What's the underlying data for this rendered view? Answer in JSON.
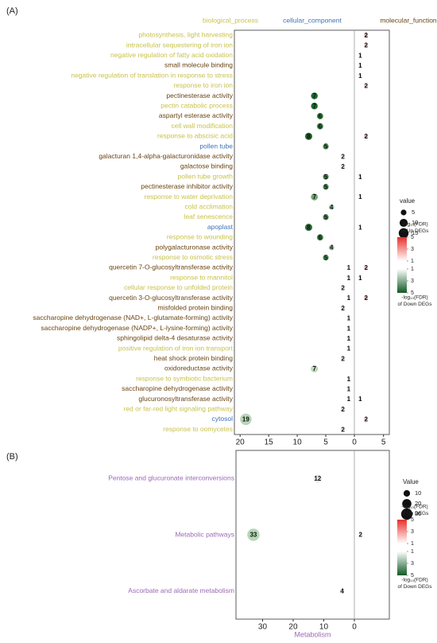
{
  "chart_data": [
    {
      "type": "dotplot",
      "panel_label": "(A)",
      "groups": [
        {
          "name": "biological_process",
          "color": "#c8c24b"
        },
        {
          "name": "cellular_component",
          "color": "#3d74b8"
        },
        {
          "name": "molecular_function",
          "color": "#6b4513"
        }
      ],
      "categories": [
        "photosynthesis, light harvesting",
        "intracellular sequestering of iron ion",
        "negative regulation of fatty acid oxidation",
        "small molecule binding",
        "negative regulation of translation in response to stress",
        "response to iron ion",
        "pectinesterase activity",
        "pectin catabolic process",
        "aspartyl esterase activity",
        "cell wall modification",
        "response to abscisic acid",
        "pollen tube",
        "galacturan 1,4-alpha-galacturonidase activity",
        "galactose binding",
        "pollen tube growth",
        "pectinesterase inhibitor activity",
        "response to water deprivation",
        "cold acclimation",
        "leaf senescence",
        "apoplast",
        "response to wounding",
        "polygalacturonase activity",
        "response to osmotic stress",
        "quercetin 7-O-glucosyltransferase activity",
        "response to mannitol",
        "cellular response to unfolded protein",
        "quercetin 3-O-glucosyltransferase activity",
        "misfolded protein binding",
        "saccharopine dehydrogenase (NAD+, L-glutamate-forming) activity",
        "saccharopine dehydrogenase (NADP+, L-lysine-forming) activity",
        "sphingolipid delta-4 desaturase activity",
        "positive regulation of iron ion transport",
        "heat shock protein binding",
        "oxidoreductase activity",
        "response to symbiotic bacterium",
        "saccharopine dehydrogenase activity",
        "glucuronosyltransferase activity",
        "red or far-red light signaling pathway",
        "cytosol",
        "response to oomycetes"
      ],
      "category_groups": [
        "biological_process",
        "biological_process",
        "biological_process",
        "molecular_function",
        "biological_process",
        "biological_process",
        "molecular_function",
        "biological_process",
        "molecular_function",
        "biological_process",
        "biological_process",
        "cellular_component",
        "molecular_function",
        "molecular_function",
        "biological_process",
        "molecular_function",
        "biological_process",
        "biological_process",
        "biological_process",
        "cellular_component",
        "biological_process",
        "molecular_function",
        "biological_process",
        "molecular_function",
        "biological_process",
        "biological_process",
        "molecular_function",
        "molecular_function",
        "molecular_function",
        "molecular_function",
        "molecular_function",
        "biological_process",
        "molecular_function",
        "molecular_function",
        "biological_process",
        "molecular_function",
        "molecular_function",
        "biological_process",
        "cellular_component",
        "biological_process"
      ],
      "down": {
        "values": [
          null,
          null,
          null,
          null,
          null,
          null,
          7,
          7,
          6,
          6,
          8,
          5,
          2,
          2,
          5,
          5,
          7,
          4,
          5,
          8,
          6,
          4,
          5,
          1,
          1,
          2,
          1,
          2,
          1,
          1,
          1,
          1,
          2,
          7,
          1,
          1,
          1,
          2,
          19,
          2
        ],
        "colors": [
          null,
          null,
          null,
          null,
          null,
          null,
          "#1b6b2e",
          "#1b6b2e",
          "#2f7d3c",
          "#2f7d3c",
          "#1e5e2a",
          "#3f8b4b",
          "#e8f3e8",
          "#e8f3e8",
          "#3f8b4b",
          "#3f8b4b",
          "#6aa96f",
          "#9fcfa0",
          "#3f8b4b",
          "#2a6a35",
          "#2f7d3c",
          "#9fcfa0",
          "#3f8b4b",
          "#f5faf5",
          "#f5faf5",
          "#e8f3e8",
          "#f5faf5",
          "#e8f3e8",
          "#f5faf5",
          "#f5faf5",
          "#f5faf5",
          "#f5faf5",
          "#e8f3e8",
          "#b9ddb9",
          "#f5faf5",
          "#f5faf5",
          "#f5faf5",
          "#e8f3e8",
          "#b5d9b5",
          "#e8f3e8"
        ]
      },
      "up": {
        "values": [
          2,
          2,
          1,
          1,
          1,
          2,
          null,
          null,
          null,
          null,
          2,
          null,
          null,
          null,
          1,
          null,
          1,
          null,
          null,
          1,
          null,
          null,
          null,
          2,
          1,
          null,
          2,
          null,
          null,
          null,
          null,
          null,
          null,
          null,
          null,
          null,
          1,
          null,
          2,
          null
        ],
        "colors": [
          "#f2b8b2",
          "#f6cfcb",
          "#fbe9e7",
          "#fbe9e7",
          "#fbe9e7",
          "#f6cfcb",
          null,
          null,
          null,
          null,
          "#f2b8b2",
          null,
          null,
          null,
          "#fbe9e7",
          null,
          "#fbe9e7",
          null,
          null,
          "#fbe9e7",
          null,
          null,
          null,
          "#f6cfcb",
          "#fbe9e7",
          null,
          "#f2b8b2",
          null,
          null,
          null,
          null,
          null,
          null,
          null,
          null,
          null,
          "#fbe9e7",
          null,
          "#f6cfcb",
          null
        ]
      },
      "xlim_down": [
        21,
        0
      ],
      "xticks_down": [
        20,
        15,
        10,
        5,
        0
      ],
      "xlim_up": [
        0,
        6
      ],
      "xticks_up": [
        5
      ],
      "size_legend": {
        "title": "value",
        "values": [
          5,
          10,
          15
        ]
      },
      "color_legend": {
        "up_title": [
          "-log₁₀(FDR)",
          "of Up DEGs"
        ],
        "up_ticks": [
          5,
          3,
          1
        ],
        "down_ticks": [
          1,
          3,
          5
        ],
        "down_title": [
          "-log₁₀(FDR)",
          "of Down DEGs"
        ],
        "up_color": "#e8302a",
        "down_color": "#0f5a24"
      }
    },
    {
      "type": "dotplot",
      "panel_label": "(B)",
      "label_color": "#9b6bb5",
      "categories": [
        "Pentose and glucuronate interconversions",
        "Metabolic pathways",
        "Ascorbate and aldarate metabolism"
      ],
      "down": {
        "values": [
          12,
          33,
          4
        ],
        "colors": [
          "#e8f3e8",
          "#b5d9b5",
          "#f5faf5"
        ]
      },
      "up": {
        "values": [
          null,
          2,
          null
        ],
        "colors": [
          null,
          "#ffffff",
          null
        ]
      },
      "xlim_down": [
        38.7,
        0
      ],
      "xticks_down": [
        30,
        20,
        10,
        0
      ],
      "xlim_up": [
        0,
        11.4
      ],
      "x_label": "Metabolism",
      "size_legend": {
        "title": "Value",
        "values": [
          10,
          20,
          30
        ]
      },
      "color_legend": {
        "up_title": [
          "-log₁₀(FDR)",
          "of Up DEGs"
        ],
        "up_ticks": [
          5,
          3,
          1
        ],
        "down_ticks": [
          1,
          3,
          5
        ],
        "down_title": [
          "-log₁₀(FDR)",
          "of Down DEGs"
        ],
        "up_color": "#e8302a",
        "down_color": "#0f5a24"
      }
    }
  ]
}
